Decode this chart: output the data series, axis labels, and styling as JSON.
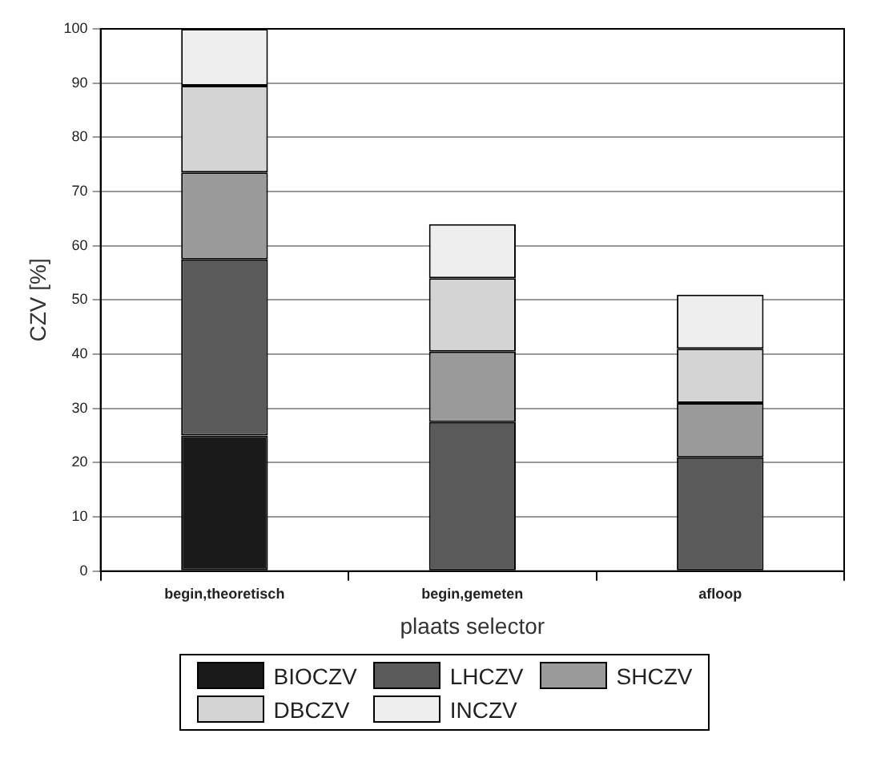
{
  "chart_data": {
    "type": "bar",
    "stacked": true,
    "xlabel": "plaats selector",
    "ylabel": "CZV [%]",
    "categories": [
      "begin,theoretisch",
      "begin,gemeten",
      "afloop"
    ],
    "series": [
      {
        "name": "BIOCZV",
        "color": "#1a1a1a",
        "values": [
          25,
          0,
          0
        ]
      },
      {
        "name": "LHCZV",
        "color": "#5a5a5a",
        "values": [
          32.5,
          27.5,
          21
        ]
      },
      {
        "name": "SHCZV",
        "color": "#9a9a9a",
        "values": [
          16,
          13,
          10
        ]
      },
      {
        "name": "DBCZV",
        "color": "#d4d4d4",
        "values": [
          16,
          13.5,
          10
        ]
      },
      {
        "name": "INCZV",
        "color": "#eeeeee",
        "values": [
          10.5,
          10,
          10
        ]
      }
    ],
    "ylim": [
      0,
      100
    ],
    "yticks": [
      0,
      10,
      20,
      30,
      40,
      50,
      60,
      70,
      80,
      90,
      100
    ],
    "grid": "y",
    "legend": "bottom"
  }
}
